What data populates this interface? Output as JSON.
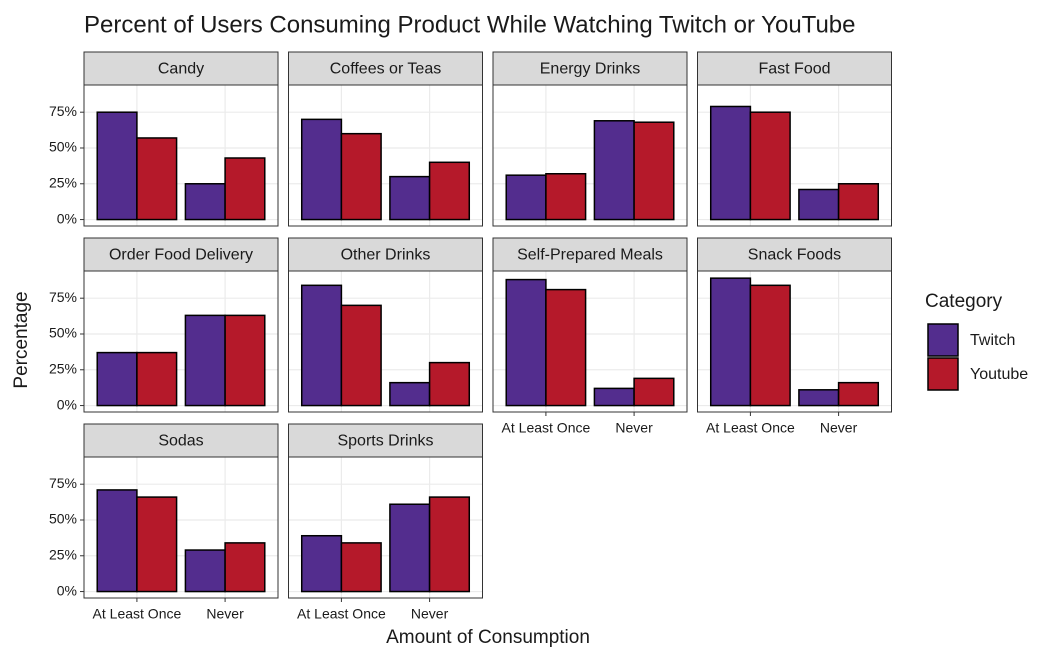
{
  "chart_data": {
    "type": "bar",
    "title": "Percent of Users Consuming Product While Watching Twitch or YouTube",
    "x_label": "Amount of Consumption",
    "y_label": "Percentage",
    "legend_title": "Category",
    "categories": [
      "At Least Once",
      "Never"
    ],
    "facets": [
      "Candy",
      "Coffees or Teas",
      "Energy Drinks",
      "Fast Food",
      "Order Food Delivery",
      "Other Drinks",
      "Self-Prepared Meals",
      "Snack Foods",
      "Sodas",
      "Sports Drinks"
    ],
    "series": [
      {
        "name": "Twitch",
        "color": "#532d8e",
        "values": [
          [
            75,
            25
          ],
          [
            70,
            30
          ],
          [
            31,
            69
          ],
          [
            79,
            21
          ],
          [
            37,
            63
          ],
          [
            84,
            16
          ],
          [
            88,
            12
          ],
          [
            89,
            11
          ],
          [
            71,
            29
          ],
          [
            39,
            61
          ]
        ]
      },
      {
        "name": "Youtube",
        "color": "#b5192a",
        "values": [
          [
            57,
            43
          ],
          [
            60,
            40
          ],
          [
            32,
            68
          ],
          [
            75,
            25
          ],
          [
            37,
            63
          ],
          [
            70,
            30
          ],
          [
            81,
            19
          ],
          [
            84,
            16
          ],
          [
            66,
            34
          ],
          [
            34,
            66
          ]
        ]
      }
    ],
    "ylim": [
      -4.5,
      94
    ],
    "yticks": [
      {
        "value": 0,
        "label": "0%"
      },
      {
        "value": 25,
        "label": "25%"
      },
      {
        "value": 50,
        "label": "50%"
      },
      {
        "value": 75,
        "label": "75%"
      }
    ],
    "grid": true,
    "legend_position": "right"
  }
}
